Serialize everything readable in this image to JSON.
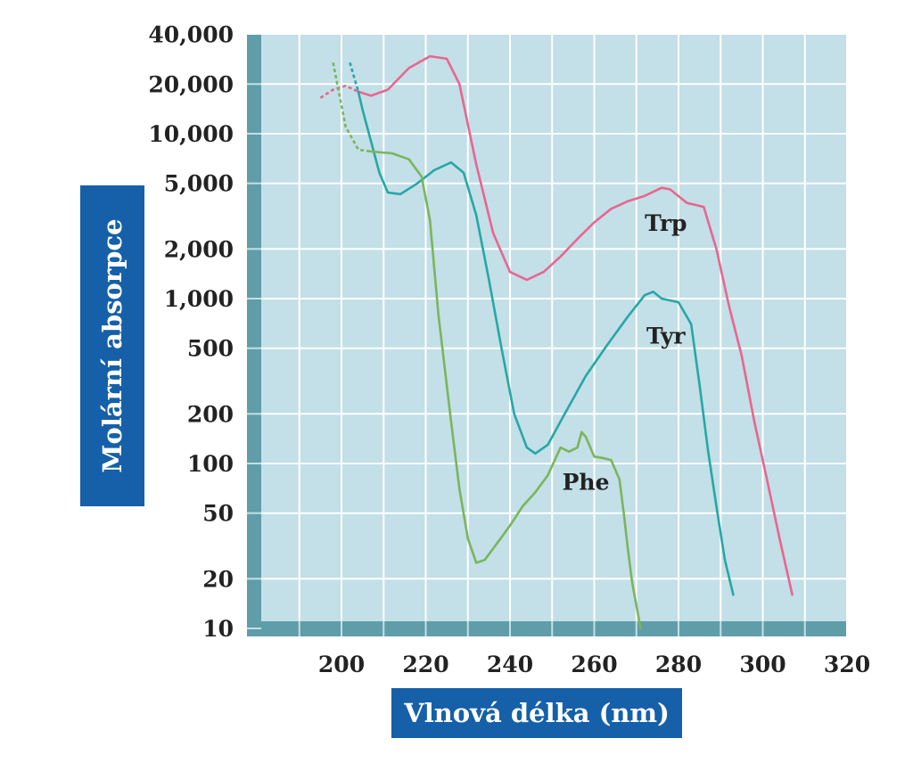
{
  "chart_data": {
    "type": "line",
    "xlabel": "Vlnová délka (nm)",
    "ylabel": "Molární absorpce",
    "y_scale": "log",
    "xlim": [
      190,
      320
    ],
    "ylim": [
      10,
      50000
    ],
    "x_ticks": [
      "200",
      "220",
      "240",
      "260",
      "280",
      "300",
      "320"
    ],
    "x_tick_values": [
      200,
      220,
      240,
      260,
      280,
      300,
      320
    ],
    "y_ticks": [
      "40,000",
      "20,000",
      "10,000",
      "5,000",
      "2,000",
      "1,000",
      "500",
      "200",
      "100",
      "50",
      "20",
      "10"
    ],
    "y_tick_values": [
      40000,
      20000,
      10000,
      5000,
      2000,
      1000,
      500,
      200,
      100,
      50,
      20,
      10
    ],
    "grid": true,
    "series": [
      {
        "name": "Trp",
        "color": "#e8668f",
        "dashed_until": 204,
        "points": [
          [
            195,
            16500
          ],
          [
            198,
            18500
          ],
          [
            201,
            19500
          ],
          [
            204,
            18000
          ],
          [
            207,
            17000
          ],
          [
            211,
            18500
          ],
          [
            216,
            25000
          ],
          [
            221,
            29500
          ],
          [
            225,
            28500
          ],
          [
            228,
            20000
          ],
          [
            232,
            6500
          ],
          [
            236,
            2500
          ],
          [
            240,
            1450
          ],
          [
            244,
            1300
          ],
          [
            248,
            1450
          ],
          [
            252,
            1800
          ],
          [
            256,
            2300
          ],
          [
            260,
            2900
          ],
          [
            264,
            3500
          ],
          [
            268,
            3900
          ],
          [
            272,
            4200
          ],
          [
            276,
            4700
          ],
          [
            278,
            4600
          ],
          [
            282,
            3800
          ],
          [
            284,
            3700
          ],
          [
            286,
            3600
          ],
          [
            289,
            2000
          ],
          [
            292,
            900
          ],
          [
            295,
            450
          ],
          [
            298,
            180
          ],
          [
            301,
            80
          ],
          [
            304,
            35
          ],
          [
            307,
            16
          ]
        ]
      },
      {
        "name": "Tyr",
        "color": "#26a7a5",
        "dashed_until": 204,
        "points": [
          [
            202,
            27000
          ],
          [
            204,
            18000
          ],
          [
            205,
            14000
          ],
          [
            207,
            9000
          ],
          [
            209,
            5800
          ],
          [
            211,
            4400
          ],
          [
            214,
            4300
          ],
          [
            218,
            5000
          ],
          [
            222,
            6000
          ],
          [
            226,
            6700
          ],
          [
            229,
            5800
          ],
          [
            232,
            3200
          ],
          [
            235,
            1300
          ],
          [
            238,
            500
          ],
          [
            241,
            200
          ],
          [
            244,
            125
          ],
          [
            246,
            115
          ],
          [
            249,
            130
          ],
          [
            253,
            200
          ],
          [
            258,
            340
          ],
          [
            263,
            520
          ],
          [
            268,
            780
          ],
          [
            272,
            1050
          ],
          [
            274,
            1100
          ],
          [
            276,
            1000
          ],
          [
            280,
            950
          ],
          [
            283,
            700
          ],
          [
            285,
            300
          ],
          [
            287,
            120
          ],
          [
            289,
            55
          ],
          [
            291,
            26
          ],
          [
            293,
            16
          ]
        ]
      },
      {
        "name": "Phe",
        "color": "#7bb55a",
        "dashed_until": 207,
        "points": [
          [
            198,
            27000
          ],
          [
            201,
            11000
          ],
          [
            204,
            8000
          ],
          [
            207,
            7800
          ],
          [
            212,
            7600
          ],
          [
            216,
            7000
          ],
          [
            219,
            5500
          ],
          [
            221,
            3000
          ],
          [
            223,
            800
          ],
          [
            226,
            180
          ],
          [
            228,
            70
          ],
          [
            230,
            35
          ],
          [
            232,
            25
          ],
          [
            234,
            26
          ],
          [
            237,
            33
          ],
          [
            240,
            42
          ],
          [
            243,
            55
          ],
          [
            246,
            67
          ],
          [
            249,
            85
          ],
          [
            251,
            110
          ],
          [
            252,
            125
          ],
          [
            254,
            118
          ],
          [
            256,
            125
          ],
          [
            257,
            155
          ],
          [
            258,
            145
          ],
          [
            260,
            110
          ],
          [
            262,
            108
          ],
          [
            264,
            105
          ],
          [
            266,
            80
          ],
          [
            267,
            50
          ],
          [
            268,
            30
          ],
          [
            269,
            19
          ],
          [
            271,
            10
          ]
        ]
      }
    ],
    "labels": [
      {
        "text": "Trp",
        "x": 277,
        "y": 2800
      },
      {
        "text": "Tyr",
        "x": 277,
        "y": 580
      },
      {
        "text": "Phe",
        "x": 258,
        "y": 75
      }
    ]
  }
}
